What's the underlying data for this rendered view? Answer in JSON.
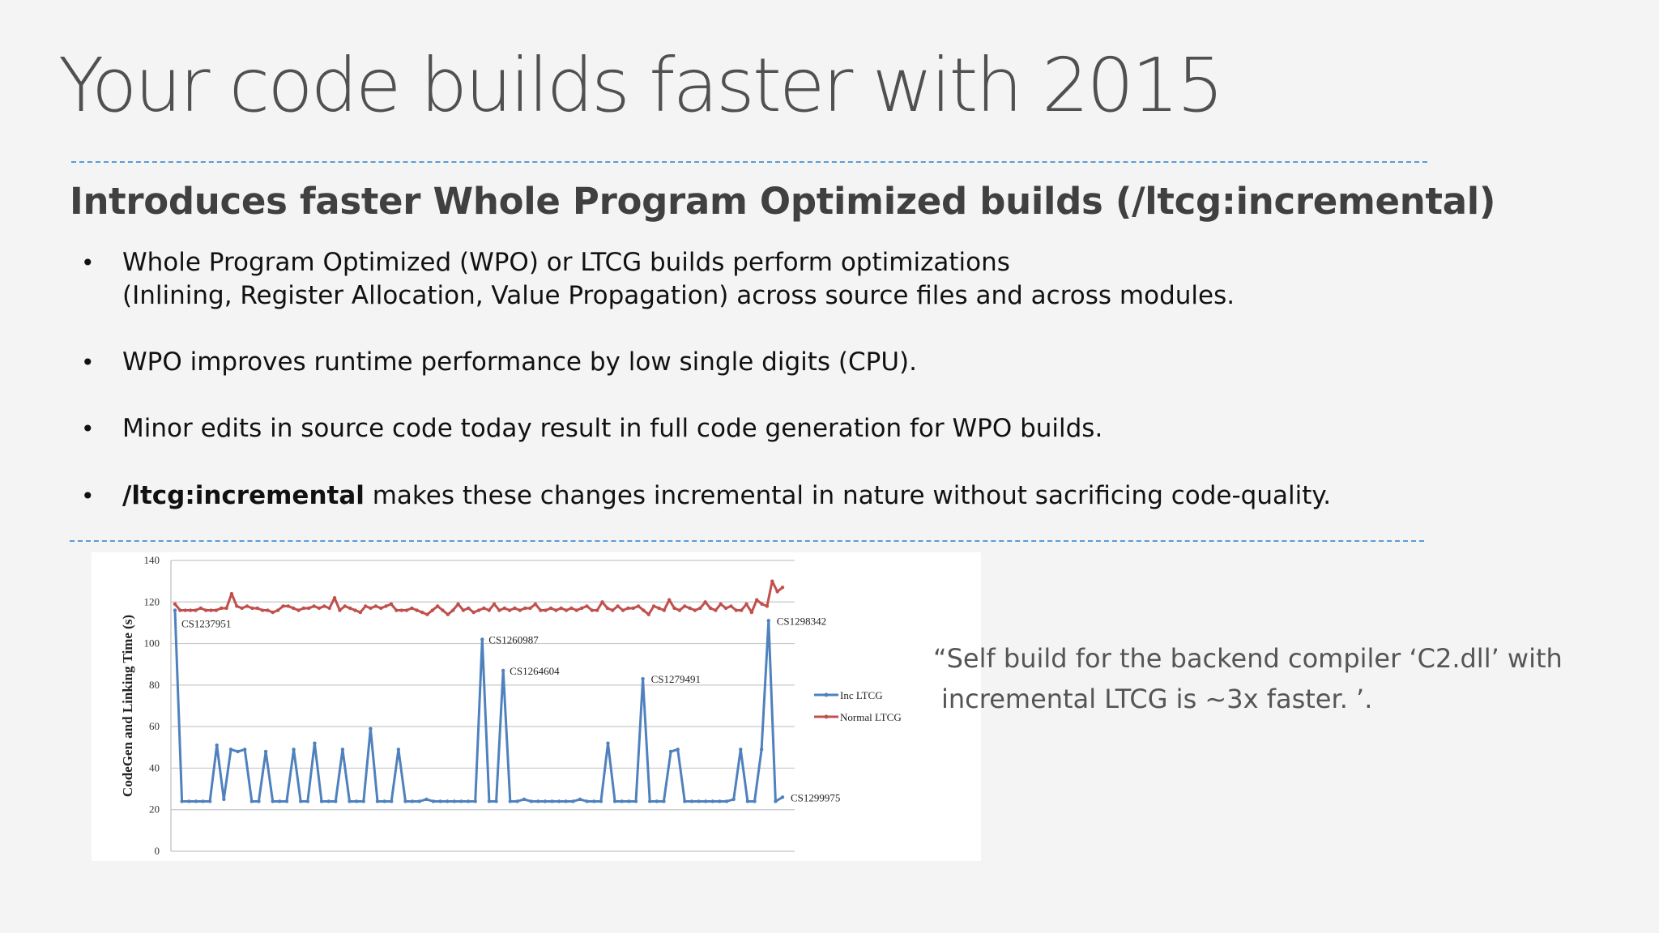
{
  "slide": {
    "title": "Your code builds faster with 2015",
    "subtitle": "Introduces faster Whole Program Optimized builds (/ltcg:incremental)",
    "bullets": {
      "b1_line1": "Whole Program Optimized (WPO) or LTCG builds perform optimizations",
      "b1_line2": "(Inlining, Register Allocation, Value Propagation) across source files and across modules.",
      "b2": "WPO improves runtime performance by low single digits (CPU).",
      "b3": "Minor edits in source code today result in full code generation for WPO builds.",
      "b4_bold": "/ltcg:incremental",
      "b4_rest": " makes these changes incremental in nature without sacrificing code-quality.",
      "bullet_char": "•"
    },
    "quote": {
      "line1": "“Self build for the backend compiler ‘C2.dll’ with",
      "line2": "incremental LTCG is ~3x faster. ’."
    }
  },
  "colors": {
    "accent_divider": "#5b9bd5",
    "inc_ltcg": "#4f81bd",
    "normal_ltcg": "#c0504d"
  },
  "chart_data": {
    "type": "line",
    "ylabel": "CodeGen and Linking Time (s)",
    "xlabel": "",
    "ylim": [
      0,
      140
    ],
    "yticks": [
      0,
      20,
      40,
      60,
      80,
      100,
      120,
      140
    ],
    "grid": true,
    "legend_position": "right",
    "series": [
      {
        "name": "Inc LTCG",
        "color": "#4f81bd",
        "values": [
          116,
          24,
          24,
          24,
          24,
          24,
          51,
          25,
          49,
          48,
          49,
          24,
          24,
          48,
          24,
          24,
          24,
          49,
          24,
          24,
          52,
          24,
          24,
          24,
          49,
          24,
          24,
          24,
          59,
          24,
          24,
          24,
          49,
          24,
          24,
          24,
          25,
          24,
          24,
          24,
          24,
          24,
          24,
          24,
          102,
          24,
          24,
          87,
          24,
          24,
          25,
          24,
          24,
          24,
          24,
          24,
          24,
          24,
          25,
          24,
          24,
          24,
          52,
          24,
          24,
          24,
          24,
          83,
          24,
          24,
          24,
          48,
          49,
          24,
          24,
          24,
          24,
          24,
          24,
          24,
          25,
          49,
          24,
          24,
          49,
          111,
          24,
          26
        ]
      },
      {
        "name": "Normal LTCG",
        "color": "#c0504d",
        "values": [
          119,
          116,
          116,
          116,
          116,
          117,
          116,
          116,
          116,
          117,
          117,
          124,
          118,
          117,
          118,
          117,
          117,
          116,
          116,
          115,
          116,
          118,
          118,
          117,
          116,
          117,
          117,
          118,
          117,
          118,
          117,
          122,
          116,
          118,
          117,
          116,
          115,
          118,
          117,
          118,
          117,
          118,
          119,
          116,
          116,
          116,
          117,
          116,
          115,
          114,
          116,
          118,
          116,
          114,
          116,
          119,
          116,
          117,
          115,
          116,
          117,
          116,
          119,
          116,
          117,
          116,
          117,
          116,
          117,
          117,
          119,
          116,
          116,
          117,
          116,
          117,
          116,
          117,
          116,
          117,
          118,
          116,
          116,
          120,
          117,
          116,
          118,
          116,
          117,
          117,
          118,
          116,
          114,
          118,
          117,
          116,
          121,
          117,
          116,
          118,
          117,
          116,
          117,
          120,
          117,
          116,
          119,
          117,
          118,
          116,
          116,
          119,
          115,
          121,
          119,
          118,
          130,
          125,
          127
        ]
      }
    ],
    "annotations": [
      {
        "text": "CS1237951",
        "series": 0,
        "index": 0
      },
      {
        "text": "CS1260987",
        "series": 0,
        "index": 44
      },
      {
        "text": "CS1264604",
        "series": 0,
        "index": 47
      },
      {
        "text": "CS1279491",
        "series": 0,
        "index": 67
      },
      {
        "text": "CS1298342",
        "series": 0,
        "index": 85
      },
      {
        "text": "CS1299975",
        "series": 0,
        "index": 87
      }
    ]
  }
}
